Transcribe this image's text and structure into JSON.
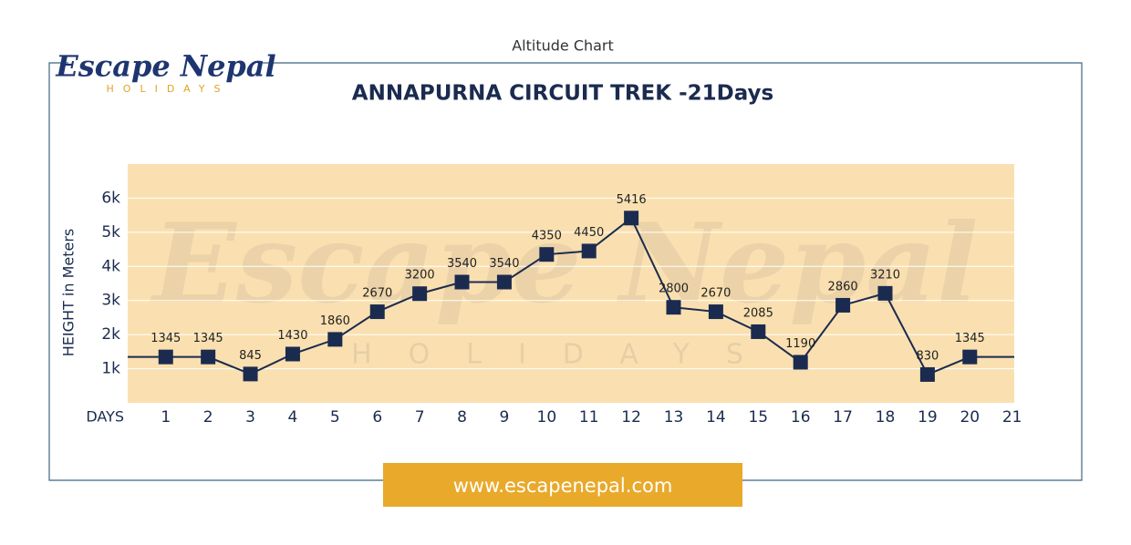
{
  "header_title": "Altitude Chart",
  "logo": {
    "name": "Escape Nepal",
    "tagline": "HOLIDAYS"
  },
  "footer_url": "www.escapenepal.com",
  "chart_data": {
    "type": "line",
    "title": "ANNAPURNA CIRCUIT TREK -21Days",
    "y_label": "HEIGHT in Meters",
    "x_label": "DAYS",
    "x": [
      1,
      2,
      3,
      4,
      5,
      6,
      7,
      8,
      9,
      10,
      11,
      12,
      13,
      14,
      15,
      16,
      17,
      18,
      19,
      20
    ],
    "series": [
      {
        "name": "Altitude",
        "color": "#1b2b4f",
        "values": [
          1345,
          1345,
          845,
          1430,
          1860,
          2670,
          3200,
          3540,
          3540,
          4350,
          4450,
          5416,
          2800,
          2670,
          2085,
          1190,
          2860,
          3210,
          830,
          1345
        ]
      }
    ],
    "xlim": [
      0.1,
      21.05
    ],
    "xticks": [
      1,
      2,
      3,
      4,
      5,
      6,
      7,
      8,
      9,
      10,
      11,
      12,
      13,
      14,
      15,
      16,
      17,
      18,
      19,
      20,
      21
    ],
    "ylim": [
      0,
      7000
    ],
    "yticks": [
      {
        "value": 1000,
        "label": "1k"
      },
      {
        "value": 2000,
        "label": "2k"
      },
      {
        "value": 3000,
        "label": "3k"
      },
      {
        "value": 4000,
        "label": "4k"
      },
      {
        "value": 5000,
        "label": "5k"
      },
      {
        "value": 6000,
        "label": "6k"
      }
    ],
    "grid": true,
    "background": "#fae0b0"
  }
}
